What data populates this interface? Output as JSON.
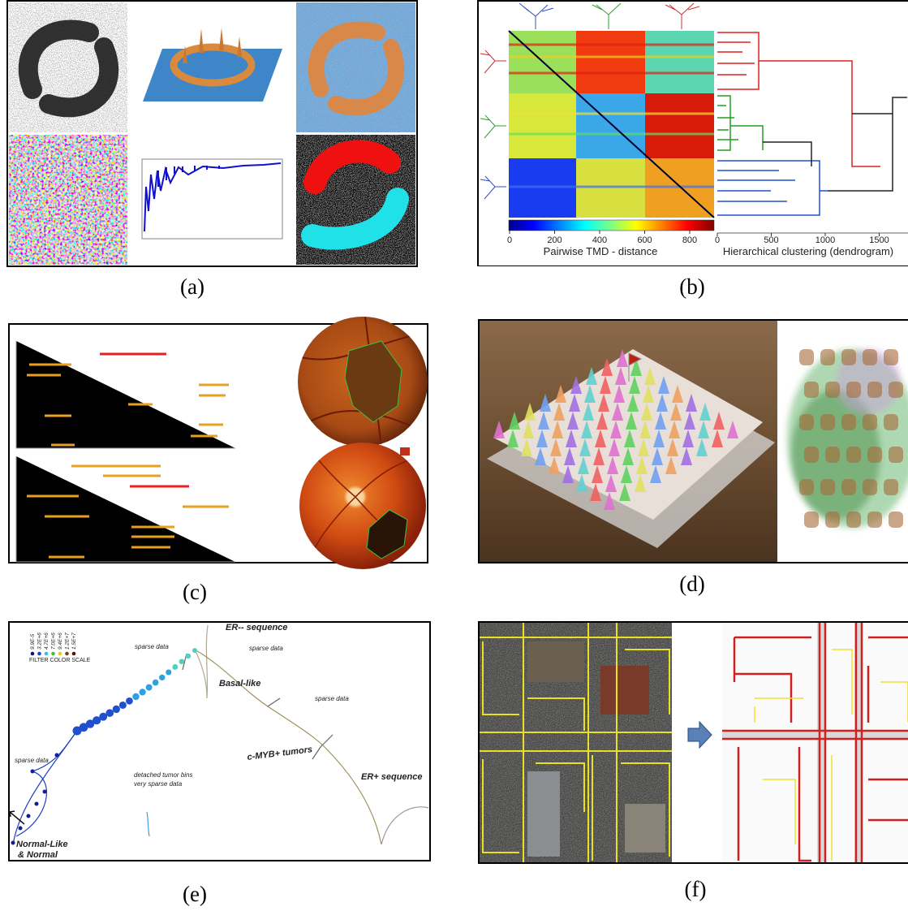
{
  "panels": [
    {
      "caption": "(a)"
    },
    {
      "caption": "(b)",
      "colorbar_ticks": [
        0,
        200,
        400,
        600,
        800
      ],
      "colorbar_label": "Pairwise TMD - distance",
      "dendrogram_ticks": [
        0,
        500,
        1000,
        1500
      ],
      "dendrogram_label": "Hierarchical clustering (dendrogram)"
    },
    {
      "caption": "(c)"
    },
    {
      "caption": "(d)"
    },
    {
      "caption": "(e)",
      "legend_values": [
        "9.9E-5",
        "3.2E+6",
        "4.7E+6",
        "7.0E+6",
        "9.4E+6",
        "1.2E+7",
        "1.5E+7"
      ],
      "legend_title": "FILTER COLOR SCALE",
      "labels": {
        "er_minus": "ER-- sequence",
        "basal": "Basal-like",
        "sparse_1": "sparse data",
        "sparse_2": "sparse data",
        "sparse_3": "sparse data",
        "sparse_4": "sparse data",
        "detached_1": "detached tumor bins",
        "detached_2": "very sparse data",
        "cmyb": "c-MYB+ tumors",
        "er_plus": "ER+ sequence",
        "normal_1": "Normal-Like",
        "normal_2": "& Normal"
      }
    },
    {
      "caption": "(f)"
    }
  ]
}
